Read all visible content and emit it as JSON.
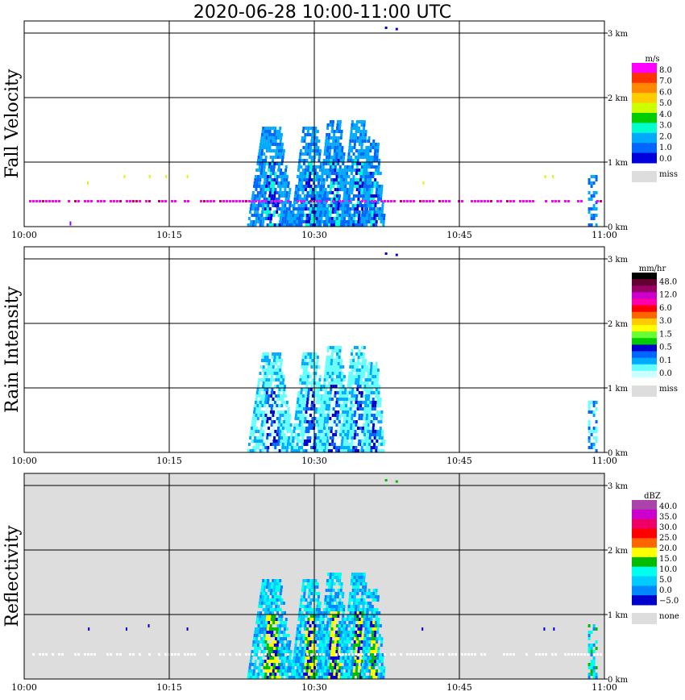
{
  "title": "2020-06-28   10:00-11:00 UTC",
  "chart_data": [
    {
      "type": "heatmap",
      "panel": "Fall Velocity",
      "ylabel": "Fall Velocity",
      "xlim": [
        "10:00",
        "11:00"
      ],
      "xticks": [
        "10:00",
        "10:15",
        "10:30",
        "10:45",
        "11:00"
      ],
      "ylim_km": [
        0,
        3.5
      ],
      "yticks": [
        "0 km",
        "1 km",
        "2 km",
        "3 km"
      ],
      "background": "#ffffff",
      "colorbar": {
        "unit": "m/s",
        "labels": [
          "8.0",
          "7.0",
          "6.0",
          "5.0",
          "4.0",
          "3.0",
          "2.0",
          "1.0",
          "0.0"
        ],
        "colors": [
          "#ff00ff",
          "#ff3300",
          "#ff8800",
          "#ffcc00",
          "#ccff00",
          "#00cc00",
          "#00ffcc",
          "#00aaff",
          "#0066ff",
          "#0000dd"
        ],
        "miss_label": "miss",
        "miss_color": "#dddddd"
      }
    },
    {
      "type": "heatmap",
      "panel": "Rain Intensity",
      "ylabel": "Rain Intensity",
      "xlim": [
        "10:00",
        "11:00"
      ],
      "xticks": [
        "10:00",
        "10:15",
        "10:30",
        "10:45",
        "11:00"
      ],
      "ylim_km": [
        0,
        3.5
      ],
      "yticks": [
        "0 km",
        "1 km",
        "2 km",
        "3 km"
      ],
      "background": "#ffffff",
      "colorbar": {
        "unit": "mm/hr",
        "labels": [
          "48.0",
          "12.0",
          "6.0",
          "3.0",
          "1.5",
          "0.5",
          "0.1",
          "0.0"
        ],
        "colors": [
          "#000000",
          "#660033",
          "#990066",
          "#cc00cc",
          "#ff00aa",
          "#ff0000",
          "#ff6600",
          "#ffcc00",
          "#ffff00",
          "#66ff33",
          "#00cc00",
          "#0000cc",
          "#0066ff",
          "#00aaff",
          "#66ffff",
          "#ccffff"
        ],
        "miss_label": "miss",
        "miss_color": "#dddddd"
      }
    },
    {
      "type": "heatmap",
      "panel": "Reflectivity",
      "ylabel": "Reflectivity",
      "xlim": [
        "10:00",
        "11:00"
      ],
      "xticks": [
        "10:00",
        "10:15",
        "10:30",
        "10:45",
        "11:00"
      ],
      "ylim_km": [
        0,
        3.5
      ],
      "yticks": [
        "0 km",
        "1 km",
        "2 km",
        "3 km"
      ],
      "background": "#dddddd",
      "colorbar": {
        "unit": "dBZ",
        "labels": [
          "40.0",
          "35.0",
          "30.0",
          "25.0",
          "20.0",
          "15.0",
          "10.0",
          "5.0",
          "0.0",
          "−5.0"
        ],
        "colors": [
          "#aa44aa",
          "#cc00cc",
          "#ee0066",
          "#ff0000",
          "#ff6600",
          "#ffff00",
          "#00bb00",
          "#00ffee",
          "#00ccff",
          "#0088ff",
          "#0000cc"
        ],
        "miss_label": "none",
        "miss_color": "#dddddd"
      }
    }
  ]
}
